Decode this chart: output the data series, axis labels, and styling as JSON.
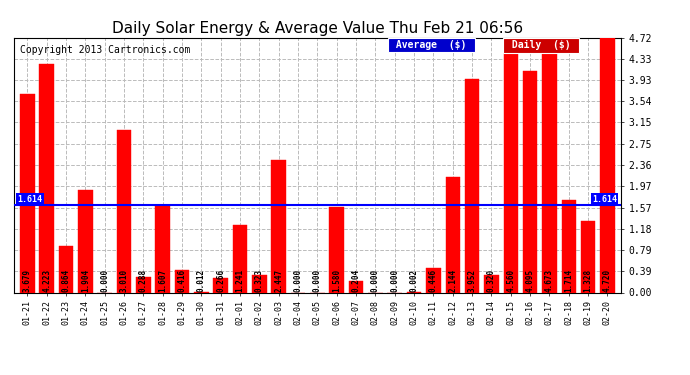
{
  "categories": [
    "01-21",
    "01-22",
    "01-23",
    "01-24",
    "01-25",
    "01-26",
    "01-27",
    "01-28",
    "01-29",
    "01-30",
    "01-31",
    "02-01",
    "02-02",
    "02-03",
    "02-04",
    "02-05",
    "02-06",
    "02-07",
    "02-08",
    "02-09",
    "02-10",
    "02-11",
    "02-12",
    "02-13",
    "02-14",
    "02-15",
    "02-16",
    "02-17",
    "02-18",
    "02-19",
    "02-20"
  ],
  "values": [
    3.679,
    4.223,
    0.864,
    1.904,
    0.0,
    3.01,
    0.288,
    1.607,
    0.416,
    0.012,
    0.266,
    1.241,
    0.323,
    2.447,
    0.0,
    0.0,
    1.58,
    0.204,
    0.0,
    0.0,
    0.002,
    0.446,
    2.144,
    3.952,
    0.32,
    4.56,
    4.095,
    4.673,
    1.714,
    1.328,
    4.72
  ],
  "bar_color": "#ff0000",
  "bar_edge_color": "#cc0000",
  "avg_value": 1.614,
  "avg_color": "#0000ff",
  "title": "Daily Solar Energy & Average Value Thu Feb 21 06:56",
  "title_fontsize": 11,
  "copyright_text": "Copyright 2013 Cartronics.com",
  "copyright_fontsize": 7,
  "yticks": [
    0.0,
    0.39,
    0.79,
    1.18,
    1.57,
    1.97,
    2.36,
    2.75,
    3.15,
    3.54,
    3.93,
    4.33,
    4.72
  ],
  "ylim": [
    0,
    4.72
  ],
  "bg_color": "#ffffff",
  "grid_color": "#bbbbbb",
  "legend_avg_bg": "#0000cc",
  "legend_daily_bg": "#cc0000",
  "avg_label": "1.614",
  "value_fontsize": 5.5,
  "xtick_fontsize": 6,
  "ytick_fontsize": 7
}
